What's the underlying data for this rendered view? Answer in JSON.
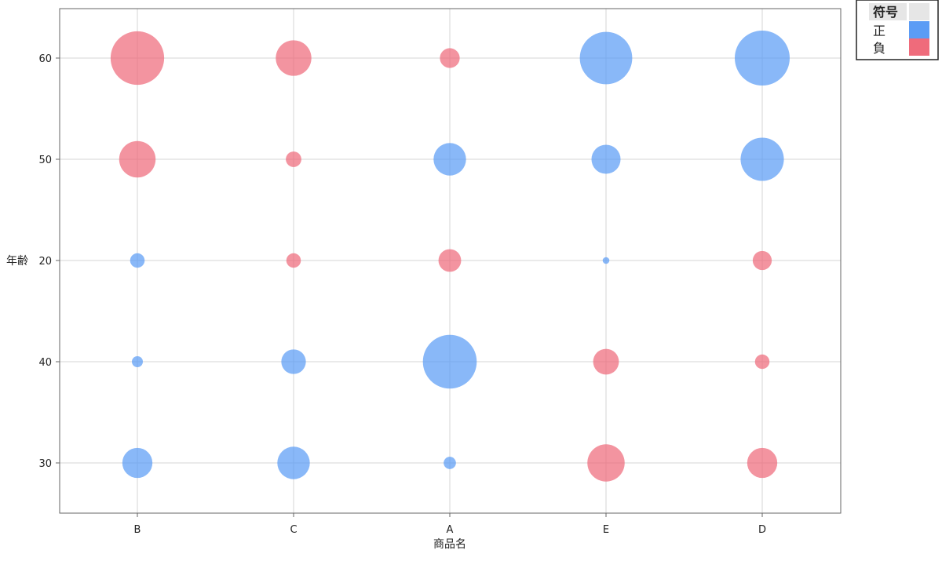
{
  "chart_data": {
    "type": "scatter",
    "xlabel": "商品名",
    "ylabel": "年齢",
    "categories": [
      "B",
      "C",
      "A",
      "E",
      "D"
    ],
    "y_categories": [
      "60",
      "50",
      "20",
      "40",
      "30"
    ],
    "grid": true,
    "legend": {
      "title": "符号",
      "placement": "top-right",
      "entries": [
        {
          "label": "正",
          "color": "#5b9cf5"
        },
        {
          "label": "負",
          "color": "#ef6b7b"
        }
      ]
    },
    "points": [
      {
        "x": "B",
        "y": "60",
        "sign": "負",
        "size": 0.95
      },
      {
        "x": "C",
        "y": "60",
        "sign": "負",
        "size": 0.42
      },
      {
        "x": "A",
        "y": "60",
        "sign": "負",
        "size": 0.13
      },
      {
        "x": "E",
        "y": "60",
        "sign": "正",
        "size": 0.91
      },
      {
        "x": "D",
        "y": "60",
        "sign": "正",
        "size": 1.0
      },
      {
        "x": "B",
        "y": "50",
        "sign": "負",
        "size": 0.44
      },
      {
        "x": "C",
        "y": "50",
        "sign": "負",
        "size": 0.08
      },
      {
        "x": "A",
        "y": "50",
        "sign": "正",
        "size": 0.35
      },
      {
        "x": "E",
        "y": "50",
        "sign": "正",
        "size": 0.28
      },
      {
        "x": "D",
        "y": "50",
        "sign": "正",
        "size": 0.62
      },
      {
        "x": "B",
        "y": "20",
        "sign": "正",
        "size": 0.07
      },
      {
        "x": "C",
        "y": "20",
        "sign": "負",
        "size": 0.07
      },
      {
        "x": "A",
        "y": "20",
        "sign": "負",
        "size": 0.17
      },
      {
        "x": "E",
        "y": "20",
        "sign": "正",
        "size": 0.015
      },
      {
        "x": "D",
        "y": "20",
        "sign": "負",
        "size": 0.12
      },
      {
        "x": "B",
        "y": "40",
        "sign": "正",
        "size": 0.04
      },
      {
        "x": "C",
        "y": "40",
        "sign": "正",
        "size": 0.2
      },
      {
        "x": "A",
        "y": "40",
        "sign": "正",
        "size": 0.96
      },
      {
        "x": "E",
        "y": "40",
        "sign": "負",
        "size": 0.22
      },
      {
        "x": "D",
        "y": "40",
        "sign": "負",
        "size": 0.07
      },
      {
        "x": "B",
        "y": "30",
        "sign": "正",
        "size": 0.3
      },
      {
        "x": "C",
        "y": "30",
        "sign": "正",
        "size": 0.35
      },
      {
        "x": "A",
        "y": "30",
        "sign": "正",
        "size": 0.05
      },
      {
        "x": "E",
        "y": "30",
        "sign": "負",
        "size": 0.46
      },
      {
        "x": "D",
        "y": "30",
        "sign": "負",
        "size": 0.3
      }
    ]
  }
}
